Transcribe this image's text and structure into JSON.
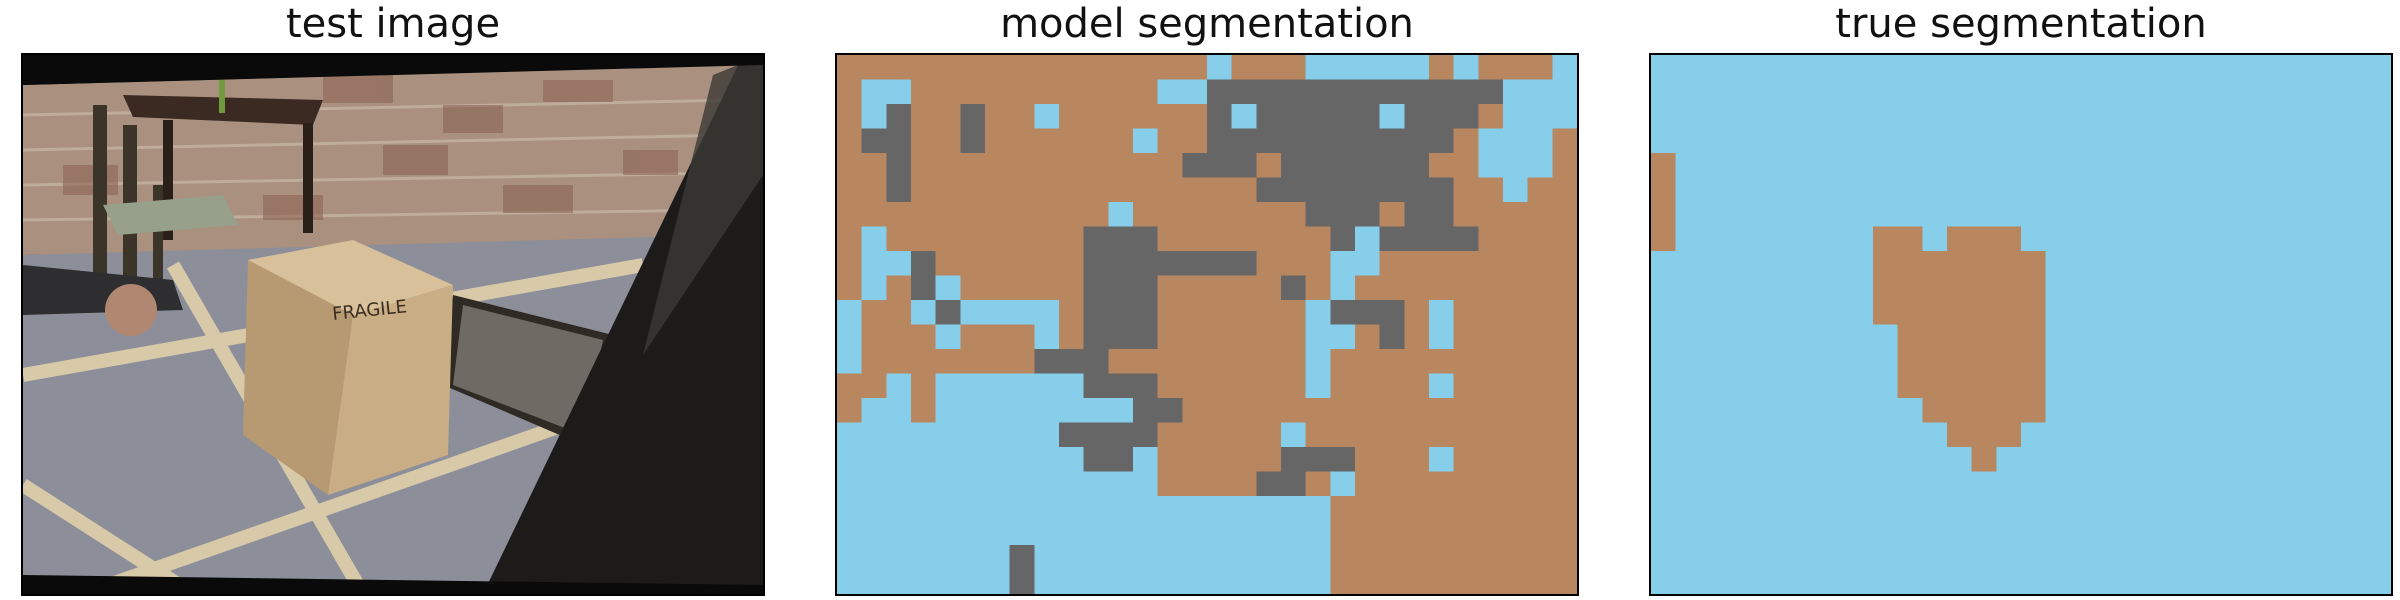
{
  "panels": {
    "test": {
      "title": "test image"
    },
    "model": {
      "title": "model segmentation"
    },
    "true": {
      "title": "true segmentation"
    }
  },
  "photo_label": "FRAGILE",
  "colors": {
    "blue": "#87ceeb",
    "brown": "#b8865f",
    "gray": "#666666"
  },
  "model_grid": [
    "BBBBBBBBBBBBBBBLBBBLLLLLBLBBBL",
    "BLLBBBBBBBBBBLLGGGGGGGGGGGGLLL",
    "BLGBBGBBLBBBBBBGLGGGGGLGGGBLLL",
    "BGGBBGBBBBBBLBBGGGGGGGGGGBLLLB",
    "BBGBBBBBBBBBBBGGGBGGGGGGBBLLLB",
    "BBGBBBBBBBBBBBBBBGGGGGGGGBBLBB",
    "BBBBBBBBBBBLBBBBBBBGGGBGGBBBBB",
    "BLBBBBBBBBGGGBBBBBBBGLGGGGBBBB",
    "BLLGBBBBBBGGGGGGGBBBLLBBBBBBBB",
    "BLBGLBBBBBGGGBBBBBGBLBBBBBBBBB",
    "LBBLGLLLLBGGGBBBBBBLGGGBLBBBBB",
    "LBBBLBBBLBGGGBBBBBBLLBGBLBBBBB",
    "LBBBBBBBGGGBBBBBBBBLBBBBBBBBBB",
    "BBLBLLLLLLGGGBBBBBBLBBBBLBBBBB",
    "BLLBLLLLLLLLGGBBBBBBBBBBBBBBBB",
    "LLLLLLLLLGGGGBBBBBLBBBBBBBBBBB",
    "LLLLLLLLLLGGLBBBBBGGGBBBLBBBBB",
    "LLLLLLLLLLLLLBBBBGGBLBBBBBBBBB",
    "LLLLLLLLLLLLLLLLLLLLBBBBBBBBBB",
    "LLLLLLLLLLLLLLLLLLLLBBBBBBBBBB",
    "LLLLLLLGLLLLLLLLLLLLBBBBBBBBBB",
    "LLLLLLLGLLLLLLLLLLLLBBBBBBBBBB"
  ],
  "true_grid": [
    "LLLLLLLLLLLLLLLLLLLLLLLLLLLLLL",
    "LLLLLLLLLLLLLLLLLLLLLLLLLLLLLL",
    "LLLLLLLLLLLLLLLLLLLLLLLLLLLLLL",
    "LLLLLLLLLLLLLLLLLLLLLLLLLLLLLL",
    "BLLLLLLLLLLLLLLLLLLLLLLLLLLLLL",
    "BLLLLLLLLLLLLLLLLLLLLLLLLLLLLL",
    "BLLLLLLLLLLLLLLLLLLLLLLLLLLLLL",
    "BLLLLLLLLBBLBBBLLLLLLLLLLLLLLL",
    "LLLLLLLLLBBBBBBBLLLLLLLLLLLLLL",
    "LLLLLLLLLBBBBBBBLLLLLLLLLLLLLL",
    "LLLLLLLLLBBBBBBBLLLLLLLLLLLLLL",
    "LLLLLLLLLLBBBBBBLLLLLLLLLLLLLL",
    "LLLLLLLLLLBBBBBBLLLLLLLLLLLLLL",
    "LLLLLLLLLLBBBBBBLLLLLLLLLLLLLL",
    "LLLLLLLLLLLBBBBBLLLLLLLLLLLLLL",
    "LLLLLLLLLLLLBBBLLLLLLLLLLLLLLL",
    "LLLLLLLLLLLLLBLLLLLLLLLLLLLLLL",
    "LLLLLLLLLLLLLLLLLLLLLLLLLLLLLL",
    "LLLLLLLLLLLLLLLLLLLLLLLLLLLLLL",
    "LLLLLLLLLLLLLLLLLLLLLLLLLLLLLL",
    "LLLLLLLLLLLLLLLLLLLLLLLLLLLLLL",
    "LLLLLLLLLLLLLLLLLLLLLLLLLLLLLL"
  ]
}
